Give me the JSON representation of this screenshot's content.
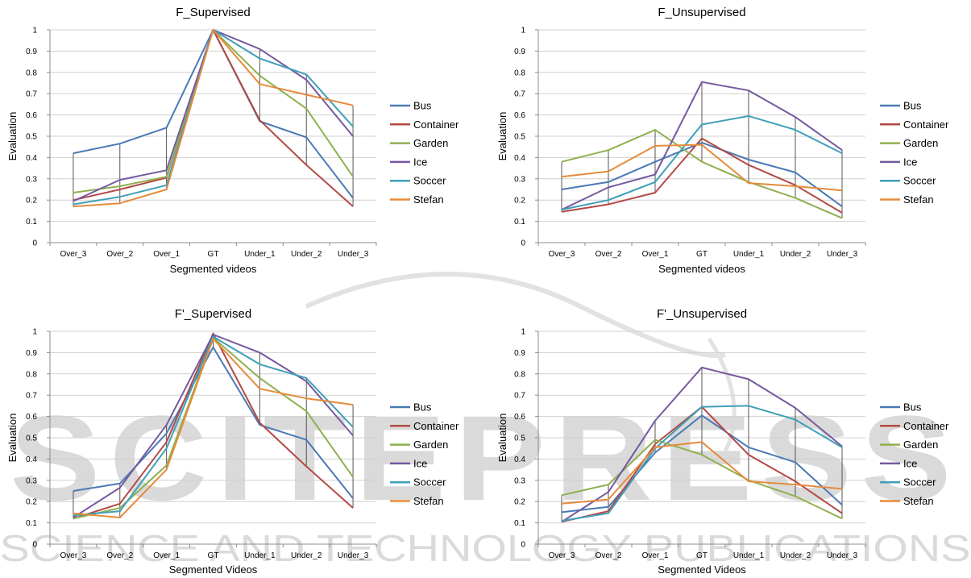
{
  "watermark": {
    "big": "SCITEPRESS",
    "small": "SCIENCE AND TECHNOLOGY PUBLICATIONS",
    "color": "#dadada"
  },
  "series_colors": {
    "Bus": "#4a7ab5",
    "Container": "#b34a45",
    "Garden": "#8fb050",
    "Ice": "#7659a0",
    "Soccer": "#3f9fb8",
    "Stefan": "#e58b3b"
  },
  "chart_data": [
    {
      "type": "line",
      "title": "F_Supervised",
      "xlabel": "Segmented videos",
      "ylabel": "Evaluation",
      "ylim": [
        0,
        1
      ],
      "yticks": [
        "0",
        "0.1",
        "0.2",
        "0.3",
        "0.4",
        "0.5",
        "0.6",
        "0.7",
        "0.8",
        "0.9",
        "1"
      ],
      "categories": [
        "Over_3",
        "Over_2",
        "Over_1",
        "GT",
        "Under_1",
        "Under_2",
        "Under_3"
      ],
      "legend_position": "right",
      "series": [
        {
          "name": "Bus",
          "values": [
            0.42,
            0.465,
            0.54,
            1.0,
            0.57,
            0.495,
            0.21
          ]
        },
        {
          "name": "Container",
          "values": [
            0.2,
            0.25,
            0.305,
            1.0,
            0.575,
            0.365,
            0.17
          ]
        },
        {
          "name": "Garden",
          "values": [
            0.235,
            0.265,
            0.31,
            1.0,
            0.785,
            0.63,
            0.31
          ]
        },
        {
          "name": "Ice",
          "values": [
            0.195,
            0.295,
            0.34,
            1.0,
            0.91,
            0.765,
            0.5
          ]
        },
        {
          "name": "Soccer",
          "values": [
            0.18,
            0.215,
            0.27,
            1.0,
            0.865,
            0.79,
            0.545
          ]
        },
        {
          "name": "Stefan",
          "values": [
            0.17,
            0.185,
            0.25,
            1.0,
            0.745,
            0.695,
            0.645
          ]
        }
      ]
    },
    {
      "type": "line",
      "title": "F_Unsupervised",
      "xlabel": "Segmented videos",
      "ylabel": "Evaluation",
      "ylim": [
        0,
        1
      ],
      "yticks": [
        "0",
        "0.1",
        "0.2",
        "0.3",
        "0.4",
        "0.5",
        "0.6",
        "0.7",
        "0.8",
        "0.9",
        "1"
      ],
      "categories": [
        "Over_3",
        "Over_2",
        "Over_1",
        "GT",
        "Under_1",
        "Under_2",
        "Under_3"
      ],
      "legend_position": "right",
      "series": [
        {
          "name": "Bus",
          "values": [
            0.25,
            0.285,
            0.38,
            0.47,
            0.39,
            0.33,
            0.17
          ]
        },
        {
          "name": "Container",
          "values": [
            0.145,
            0.18,
            0.235,
            0.49,
            0.365,
            0.27,
            0.14
          ]
        },
        {
          "name": "Garden",
          "values": [
            0.38,
            0.435,
            0.53,
            0.38,
            0.285,
            0.21,
            0.115
          ]
        },
        {
          "name": "Ice",
          "values": [
            0.155,
            0.26,
            0.32,
            0.755,
            0.715,
            0.59,
            0.435
          ]
        },
        {
          "name": "Soccer",
          "values": [
            0.155,
            0.2,
            0.285,
            0.555,
            0.595,
            0.53,
            0.42
          ]
        },
        {
          "name": "Stefan",
          "values": [
            0.31,
            0.335,
            0.455,
            0.46,
            0.28,
            0.265,
            0.245
          ]
        }
      ]
    },
    {
      "type": "line",
      "title": "F'_Supervised",
      "xlabel": "Segmented Videos",
      "ylabel": "Evaluation",
      "ylim": [
        0,
        1
      ],
      "yticks": [
        "0",
        "0.1",
        "0.2",
        "0.3",
        "0.4",
        "0.5",
        "0.6",
        "0.7",
        "0.8",
        "0.9",
        "1"
      ],
      "categories": [
        "Over_3",
        "Over_2",
        "Over_1",
        "GT",
        "Under_1",
        "Under_2",
        "Under_3"
      ],
      "legend_position": "right",
      "series": [
        {
          "name": "Bus",
          "values": [
            0.25,
            0.285,
            0.52,
            0.925,
            0.56,
            0.49,
            0.215
          ]
        },
        {
          "name": "Container",
          "values": [
            0.12,
            0.19,
            0.48,
            0.99,
            0.57,
            0.365,
            0.17
          ]
        },
        {
          "name": "Garden",
          "values": [
            0.12,
            0.17,
            0.37,
            0.97,
            0.78,
            0.625,
            0.315
          ]
        },
        {
          "name": "Ice",
          "values": [
            0.125,
            0.265,
            0.56,
            0.985,
            0.9,
            0.765,
            0.51
          ]
        },
        {
          "name": "Soccer",
          "values": [
            0.135,
            0.155,
            0.45,
            0.975,
            0.845,
            0.78,
            0.55
          ]
        },
        {
          "name": "Stefan",
          "values": [
            0.145,
            0.125,
            0.35,
            0.965,
            0.73,
            0.685,
            0.655
          ]
        }
      ]
    },
    {
      "type": "line",
      "title": "F'_Unsupervised",
      "xlabel": "Segmented Videos",
      "ylabel": "Evaluation",
      "ylim": [
        0,
        1
      ],
      "yticks": [
        "0",
        "0.1",
        "0.2",
        "0.3",
        "0.4",
        "0.5",
        "0.6",
        "0.7",
        "0.8",
        "0.9",
        "1"
      ],
      "categories": [
        "Over_3",
        "Over_2",
        "Over_1",
        "GT",
        "Under_1",
        "Under_2",
        "Under_3"
      ],
      "legend_position": "right",
      "series": [
        {
          "name": "Bus",
          "values": [
            0.15,
            0.175,
            0.43,
            0.605,
            0.455,
            0.385,
            0.185
          ]
        },
        {
          "name": "Container",
          "values": [
            0.105,
            0.155,
            0.47,
            0.645,
            0.42,
            0.295,
            0.145
          ]
        },
        {
          "name": "Garden",
          "values": [
            0.23,
            0.28,
            0.49,
            0.42,
            0.3,
            0.225,
            0.12
          ]
        },
        {
          "name": "Ice",
          "values": [
            0.105,
            0.245,
            0.58,
            0.83,
            0.775,
            0.64,
            0.46
          ]
        },
        {
          "name": "Soccer",
          "values": [
            0.11,
            0.145,
            0.45,
            0.645,
            0.65,
            0.585,
            0.455
          ]
        },
        {
          "name": "Stefan",
          "values": [
            0.19,
            0.21,
            0.455,
            0.48,
            0.295,
            0.28,
            0.26
          ]
        }
      ]
    }
  ]
}
